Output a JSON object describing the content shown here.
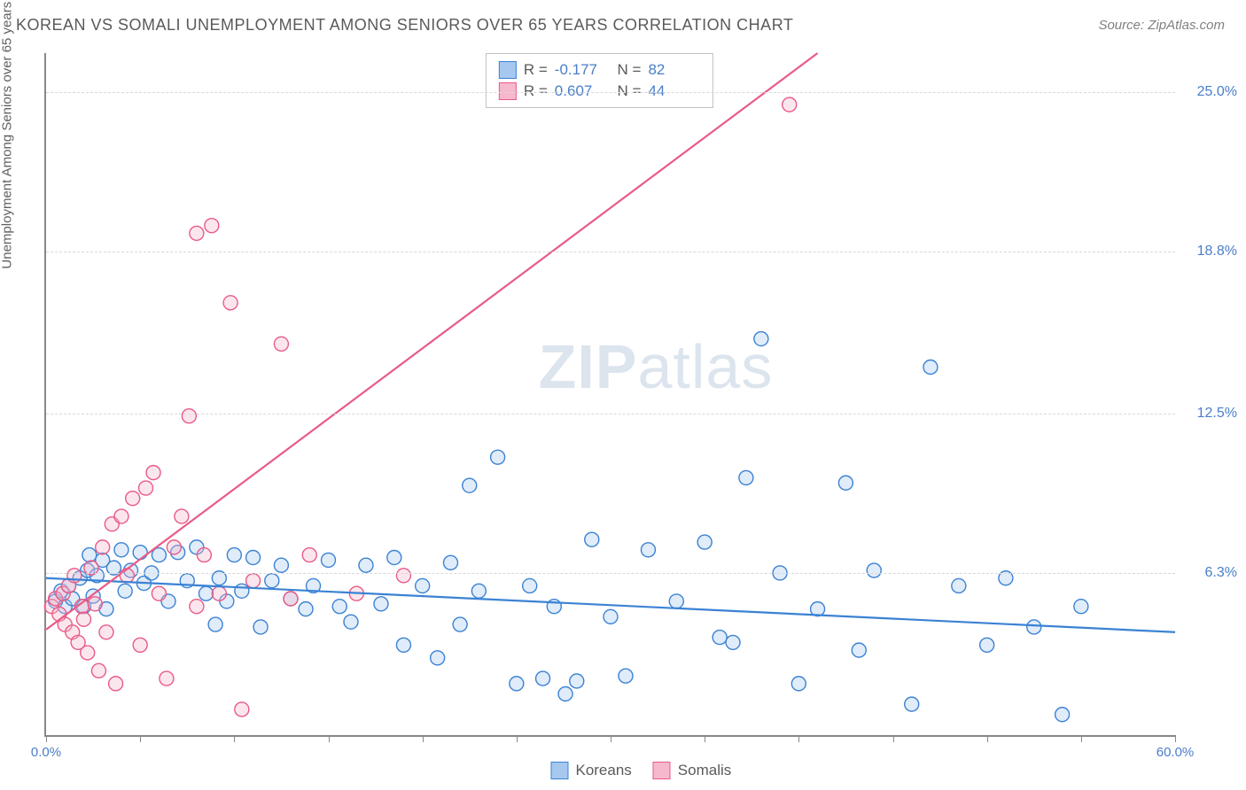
{
  "title": "KOREAN VS SOMALI UNEMPLOYMENT AMONG SENIORS OVER 65 YEARS CORRELATION CHART",
  "source": "Source: ZipAtlas.com",
  "y_axis_label": "Unemployment Among Seniors over 65 years",
  "watermark": {
    "bold": "ZIP",
    "rest": "atlas"
  },
  "chart": {
    "type": "scatter",
    "background_color": "#ffffff",
    "grid_color": "#d8d8d8",
    "axis_color": "#888888",
    "xlim": [
      0,
      60
    ],
    "ylim": [
      0,
      26.5
    ],
    "x_ticks": [
      0,
      5,
      10,
      15,
      20,
      25,
      30,
      35,
      40,
      45,
      50,
      55,
      60
    ],
    "x_tick_labels": {
      "0": "0.0%",
      "60": "60.0%"
    },
    "y_gridlines": [
      6.3,
      12.5,
      18.8,
      25.0
    ],
    "y_tick_labels": [
      "6.3%",
      "12.5%",
      "18.8%",
      "25.0%"
    ],
    "marker_radius": 8,
    "marker_fill_opacity": 0.35,
    "marker_stroke_width": 1.4,
    "line_width": 2.2,
    "series": [
      {
        "name": "Koreans",
        "stroke": "#3b82d4",
        "fill": "#a6c8ef",
        "r": "-0.177",
        "n": "82",
        "trend": {
          "x1": 0,
          "y1": 6.1,
          "x2": 60,
          "y2": 4.0
        },
        "points": [
          [
            0.5,
            5.2
          ],
          [
            0.8,
            5.6
          ],
          [
            1.0,
            5.0
          ],
          [
            1.2,
            5.8
          ],
          [
            1.4,
            5.3
          ],
          [
            1.8,
            6.1
          ],
          [
            2.0,
            5.0
          ],
          [
            2.2,
            6.4
          ],
          [
            2.3,
            7.0
          ],
          [
            2.5,
            5.4
          ],
          [
            2.7,
            6.2
          ],
          [
            3.0,
            6.8
          ],
          [
            3.2,
            4.9
          ],
          [
            3.6,
            6.5
          ],
          [
            4.0,
            7.2
          ],
          [
            4.2,
            5.6
          ],
          [
            4.5,
            6.4
          ],
          [
            5.0,
            7.1
          ],
          [
            5.2,
            5.9
          ],
          [
            5.6,
            6.3
          ],
          [
            6.0,
            7.0
          ],
          [
            6.5,
            5.2
          ],
          [
            7.0,
            7.1
          ],
          [
            7.5,
            6.0
          ],
          [
            8.0,
            7.3
          ],
          [
            8.5,
            5.5
          ],
          [
            9.0,
            4.3
          ],
          [
            9.2,
            6.1
          ],
          [
            9.6,
            5.2
          ],
          [
            10.0,
            7.0
          ],
          [
            10.4,
            5.6
          ],
          [
            11.0,
            6.9
          ],
          [
            11.4,
            4.2
          ],
          [
            12.0,
            6.0
          ],
          [
            12.5,
            6.6
          ],
          [
            13.0,
            5.3
          ],
          [
            13.8,
            4.9
          ],
          [
            14.2,
            5.8
          ],
          [
            15.0,
            6.8
          ],
          [
            15.6,
            5.0
          ],
          [
            16.2,
            4.4
          ],
          [
            17.0,
            6.6
          ],
          [
            17.8,
            5.1
          ],
          [
            18.5,
            6.9
          ],
          [
            19.0,
            3.5
          ],
          [
            20.0,
            5.8
          ],
          [
            20.8,
            3.0
          ],
          [
            21.5,
            6.7
          ],
          [
            22.0,
            4.3
          ],
          [
            22.5,
            9.7
          ],
          [
            23.0,
            5.6
          ],
          [
            24.0,
            10.8
          ],
          [
            25.0,
            2.0
          ],
          [
            25.7,
            5.8
          ],
          [
            26.4,
            2.2
          ],
          [
            27.0,
            5.0
          ],
          [
            27.6,
            1.6
          ],
          [
            28.2,
            2.1
          ],
          [
            29.0,
            7.6
          ],
          [
            30.0,
            4.6
          ],
          [
            30.8,
            2.3
          ],
          [
            32.0,
            7.2
          ],
          [
            33.5,
            5.2
          ],
          [
            35.0,
            7.5
          ],
          [
            35.8,
            3.8
          ],
          [
            36.5,
            3.6
          ],
          [
            37.2,
            10.0
          ],
          [
            38.0,
            15.4
          ],
          [
            39.0,
            6.3
          ],
          [
            40.0,
            2.0
          ],
          [
            41.0,
            4.9
          ],
          [
            42.5,
            9.8
          ],
          [
            43.2,
            3.3
          ],
          [
            44.0,
            6.4
          ],
          [
            46.0,
            1.2
          ],
          [
            47.0,
            14.3
          ],
          [
            48.5,
            5.8
          ],
          [
            50.0,
            3.5
          ],
          [
            51.0,
            6.1
          ],
          [
            52.5,
            4.2
          ],
          [
            54.0,
            0.8
          ],
          [
            55.0,
            5.0
          ]
        ]
      },
      {
        "name": "Somalis",
        "stroke": "#e95b87",
        "fill": "#f6b8cc",
        "r": "0.607",
        "n": "44",
        "trend": {
          "x1": 0,
          "y1": 4.1,
          "x2": 41,
          "y2": 26.5
        },
        "points": [
          [
            0.3,
            5.0
          ],
          [
            0.5,
            5.3
          ],
          [
            0.7,
            4.7
          ],
          [
            0.9,
            5.5
          ],
          [
            1.0,
            4.3
          ],
          [
            1.2,
            5.8
          ],
          [
            1.4,
            4.0
          ],
          [
            1.5,
            6.2
          ],
          [
            1.7,
            3.6
          ],
          [
            1.9,
            5.0
          ],
          [
            2.0,
            4.5
          ],
          [
            2.2,
            3.2
          ],
          [
            2.4,
            6.5
          ],
          [
            2.6,
            5.1
          ],
          [
            2.8,
            2.5
          ],
          [
            3.0,
            7.3
          ],
          [
            3.2,
            4.0
          ],
          [
            3.5,
            8.2
          ],
          [
            3.7,
            2.0
          ],
          [
            4.0,
            8.5
          ],
          [
            4.3,
            6.2
          ],
          [
            4.6,
            9.2
          ],
          [
            5.0,
            3.5
          ],
          [
            5.3,
            9.6
          ],
          [
            5.7,
            10.2
          ],
          [
            6.0,
            5.5
          ],
          [
            6.4,
            2.2
          ],
          [
            6.8,
            7.3
          ],
          [
            7.2,
            8.5
          ],
          [
            7.6,
            12.4
          ],
          [
            8.0,
            5.0
          ],
          [
            8.0,
            19.5
          ],
          [
            8.4,
            7.0
          ],
          [
            8.8,
            19.8
          ],
          [
            9.2,
            5.5
          ],
          [
            9.8,
            16.8
          ],
          [
            10.4,
            1.0
          ],
          [
            11.0,
            6.0
          ],
          [
            12.5,
            15.2
          ],
          [
            13.0,
            5.3
          ],
          [
            14.0,
            7.0
          ],
          [
            16.5,
            5.5
          ],
          [
            19.0,
            6.2
          ],
          [
            39.5,
            24.5
          ]
        ]
      }
    ]
  },
  "legend": {
    "items": [
      {
        "label": "Koreans",
        "stroke": "#3b82d4",
        "fill": "#a6c8ef"
      },
      {
        "label": "Somalis",
        "stroke": "#e95b87",
        "fill": "#f6b8cc"
      }
    ]
  }
}
